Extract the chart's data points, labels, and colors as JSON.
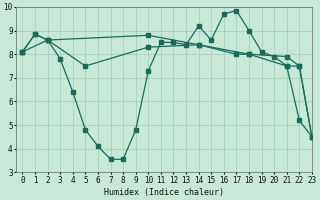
{
  "line1_x": [
    0,
    1,
    2,
    3,
    4,
    5,
    6,
    7,
    8,
    9,
    10,
    11,
    12,
    13,
    14,
    15,
    16,
    17,
    18,
    19,
    20,
    21,
    22,
    23
  ],
  "line1_y": [
    8.1,
    8.85,
    8.6,
    7.8,
    6.4,
    4.8,
    4.1,
    3.55,
    3.55,
    4.8,
    7.3,
    8.5,
    8.5,
    8.4,
    9.2,
    8.6,
    9.7,
    9.85,
    9.0,
    8.1,
    7.9,
    7.5,
    5.2,
    4.5
  ],
  "line2_x": [
    0,
    1,
    2,
    10,
    14,
    17,
    18,
    21,
    22,
    23
  ],
  "line2_y": [
    8.1,
    8.85,
    8.6,
    8.8,
    8.4,
    8.0,
    8.0,
    7.9,
    7.5,
    4.5
  ],
  "line3_x": [
    0,
    2,
    5,
    10,
    14,
    18,
    21,
    22,
    23
  ],
  "line3_y": [
    8.1,
    8.6,
    7.5,
    8.3,
    8.4,
    8.0,
    7.5,
    7.5,
    4.5
  ],
  "bg_color": "#c8e8d8",
  "line_color": "#1a6b5a",
  "grid_color": "#a0ccbc",
  "xlabel": "Humidex (Indice chaleur)",
  "ylim": [
    3,
    10
  ],
  "xlim": [
    -0.5,
    23
  ],
  "yticks": [
    3,
    4,
    5,
    6,
    7,
    8,
    9,
    10
  ],
  "xticks": [
    0,
    1,
    2,
    3,
    4,
    5,
    6,
    7,
    8,
    9,
    10,
    11,
    12,
    13,
    14,
    15,
    16,
    17,
    18,
    19,
    20,
    21,
    22,
    23
  ]
}
